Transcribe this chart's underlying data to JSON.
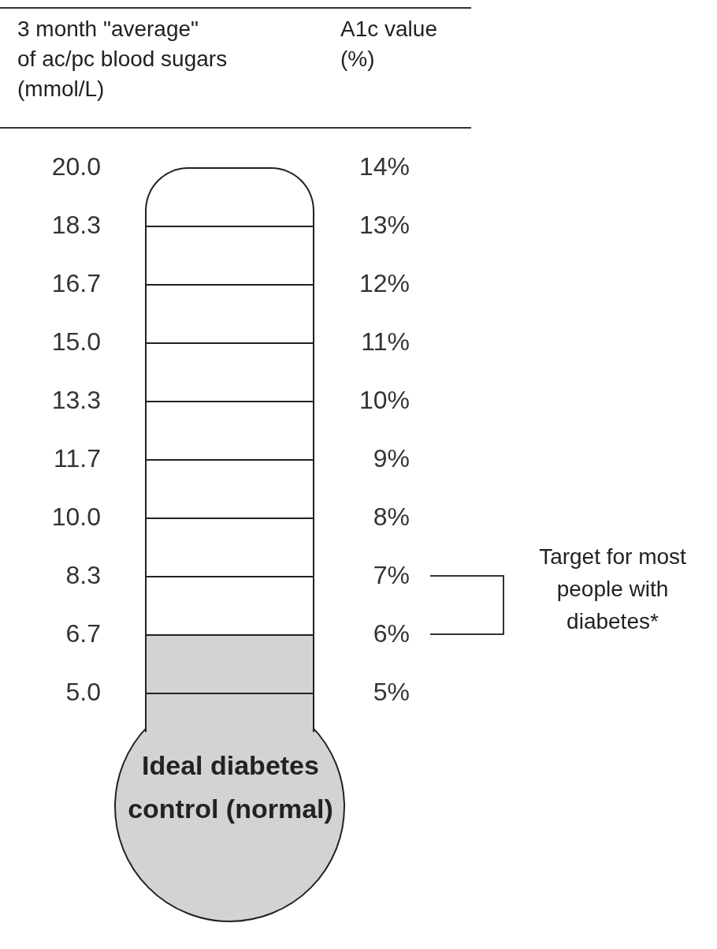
{
  "chart_data": {
    "type": "bar",
    "ylabel": "3 month \"average\"\nof ac/pc blood sugars\n(mmol/L)",
    "y2label": "A1c value\n(%)",
    "categories": [
      null
    ],
    "series": [
      {
        "color": "#d3d3d3",
        "values": [
          6
        ],
        "axis": "y2"
      }
    ],
    "ylim": [
      5,
      20
    ],
    "yticks": [
      {
        "value": 5,
        "label": "5.0"
      },
      {
        "value": 6.67,
        "label": "6.7"
      },
      {
        "value": 8.33,
        "label": "8.3"
      },
      {
        "value": 10,
        "label": "10.0"
      },
      {
        "value": 11.67,
        "label": "11.7"
      },
      {
        "value": 13.33,
        "label": "13.3"
      },
      {
        "value": 15,
        "label": "15.0"
      },
      {
        "value": 16.67,
        "label": "16.7"
      },
      {
        "value": 18.33,
        "label": "18.3"
      },
      {
        "value": 20,
        "label": "20.0"
      }
    ],
    "y2lim": [
      5,
      14
    ],
    "y2ticks": [
      {
        "value": 5,
        "label": "5%"
      },
      {
        "value": 6,
        "label": "6%"
      },
      {
        "value": 7,
        "label": "7%"
      },
      {
        "value": 8,
        "label": "8%"
      },
      {
        "value": 9,
        "label": "9%"
      },
      {
        "value": 10,
        "label": "10%"
      },
      {
        "value": 11,
        "label": "11%"
      },
      {
        "value": 12,
        "label": "12%"
      },
      {
        "value": 13,
        "label": "13%"
      },
      {
        "value": 14,
        "label": "14%"
      }
    ],
    "grid": "y",
    "legend": false,
    "annotations": [
      "Target for most people with diabetes*",
      "Ideal diabetes control (normal)"
    ]
  }
}
